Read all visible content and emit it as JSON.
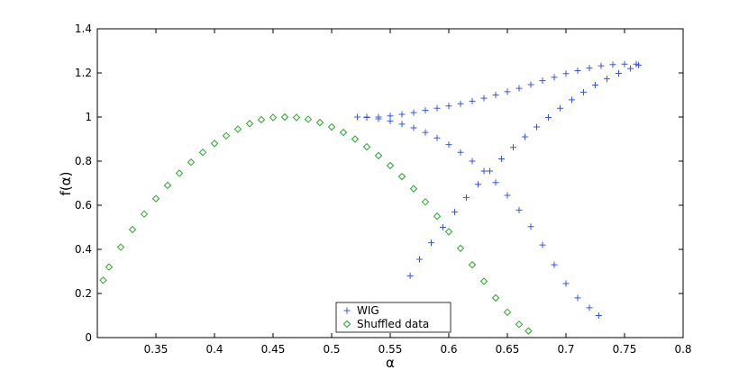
{
  "chart_data": {
    "type": "scatter",
    "title": "",
    "xlabel": "α",
    "ylabel": "f(α)",
    "xlim": [
      0.3,
      0.8
    ],
    "ylim": [
      0,
      1.4
    ],
    "xticks": [
      "0.35",
      "0.4",
      "0.45",
      "0.5",
      "0.55",
      "0.6",
      "0.65",
      "0.7",
      "0.75",
      "0.8"
    ],
    "yticks": [
      "0",
      "0.2",
      "0.4",
      "0.6",
      "0.8",
      "1",
      "1.2",
      "1.4"
    ],
    "grid": false,
    "legend_position": "bottom-center",
    "series": [
      {
        "name": "WIG",
        "marker": "+",
        "color": "#3355ee",
        "points": [
          [
            0.522,
            1.0
          ],
          [
            0.53,
            1.0
          ],
          [
            0.54,
            1.0
          ],
          [
            0.55,
            1.005
          ],
          [
            0.56,
            1.012
          ],
          [
            0.57,
            1.02
          ],
          [
            0.58,
            1.03
          ],
          [
            0.59,
            1.04
          ],
          [
            0.6,
            1.05
          ],
          [
            0.61,
            1.06
          ],
          [
            0.62,
            1.072
          ],
          [
            0.63,
            1.085
          ],
          [
            0.64,
            1.1
          ],
          [
            0.65,
            1.115
          ],
          [
            0.66,
            1.13
          ],
          [
            0.67,
            1.147
          ],
          [
            0.68,
            1.165
          ],
          [
            0.69,
            1.18
          ],
          [
            0.7,
            1.197
          ],
          [
            0.71,
            1.21
          ],
          [
            0.72,
            1.222
          ],
          [
            0.73,
            1.232
          ],
          [
            0.74,
            1.238
          ],
          [
            0.75,
            1.24
          ],
          [
            0.76,
            1.24
          ],
          [
            0.53,
            0.998
          ],
          [
            0.54,
            0.992
          ],
          [
            0.55,
            0.982
          ],
          [
            0.56,
            0.968
          ],
          [
            0.57,
            0.951
          ],
          [
            0.58,
            0.93
          ],
          [
            0.59,
            0.905
          ],
          [
            0.6,
            0.875
          ],
          [
            0.61,
            0.84
          ],
          [
            0.62,
            0.8
          ],
          [
            0.63,
            0.755
          ],
          [
            0.64,
            0.703
          ],
          [
            0.65,
            0.645
          ],
          [
            0.66,
            0.578
          ],
          [
            0.67,
            0.503
          ],
          [
            0.68,
            0.42
          ],
          [
            0.69,
            0.33
          ],
          [
            0.7,
            0.245
          ],
          [
            0.71,
            0.18
          ],
          [
            0.72,
            0.135
          ],
          [
            0.728,
            0.1
          ],
          [
            0.567,
            0.28
          ],
          [
            0.575,
            0.355
          ],
          [
            0.585,
            0.43
          ],
          [
            0.595,
            0.5
          ],
          [
            0.605,
            0.57
          ],
          [
            0.615,
            0.635
          ],
          [
            0.625,
            0.695
          ],
          [
            0.635,
            0.755
          ],
          [
            0.645,
            0.81
          ],
          [
            0.655,
            0.862
          ],
          [
            0.665,
            0.91
          ],
          [
            0.675,
            0.955
          ],
          [
            0.685,
            0.998
          ],
          [
            0.695,
            1.04
          ],
          [
            0.705,
            1.078
          ],
          [
            0.715,
            1.113
          ],
          [
            0.725,
            1.145
          ],
          [
            0.735,
            1.173
          ],
          [
            0.745,
            1.198
          ],
          [
            0.755,
            1.22
          ],
          [
            0.762,
            1.235
          ]
        ]
      },
      {
        "name": "Shuffled data",
        "marker": "diamond",
        "color": "#22aa22",
        "points": [
          [
            0.305,
            0.26
          ],
          [
            0.31,
            0.32
          ],
          [
            0.32,
            0.41
          ],
          [
            0.33,
            0.49
          ],
          [
            0.34,
            0.56
          ],
          [
            0.35,
            0.63
          ],
          [
            0.36,
            0.69
          ],
          [
            0.37,
            0.745
          ],
          [
            0.38,
            0.795
          ],
          [
            0.39,
            0.84
          ],
          [
            0.4,
            0.88
          ],
          [
            0.41,
            0.915
          ],
          [
            0.42,
            0.945
          ],
          [
            0.43,
            0.97
          ],
          [
            0.44,
            0.988
          ],
          [
            0.45,
            0.998
          ],
          [
            0.46,
            1.0
          ],
          [
            0.47,
            0.998
          ],
          [
            0.48,
            0.99
          ],
          [
            0.49,
            0.975
          ],
          [
            0.5,
            0.955
          ],
          [
            0.51,
            0.93
          ],
          [
            0.52,
            0.9
          ],
          [
            0.53,
            0.865
          ],
          [
            0.54,
            0.825
          ],
          [
            0.55,
            0.78
          ],
          [
            0.56,
            0.73
          ],
          [
            0.57,
            0.675
          ],
          [
            0.58,
            0.615
          ],
          [
            0.59,
            0.55
          ],
          [
            0.6,
            0.48
          ],
          [
            0.61,
            0.405
          ],
          [
            0.62,
            0.33
          ],
          [
            0.63,
            0.255
          ],
          [
            0.64,
            0.18
          ],
          [
            0.65,
            0.115
          ],
          [
            0.66,
            0.06
          ],
          [
            0.668,
            0.03
          ]
        ]
      }
    ]
  }
}
